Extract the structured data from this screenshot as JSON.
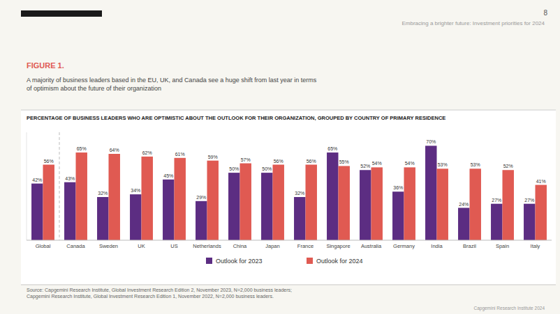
{
  "chart_data": {
    "type": "bar",
    "title": "PERCENTAGE OF BUSINESS LEADERS WHO ARE OPTIMISTIC ABOUT THE OUTLOOK FOR THEIR ORGANIZATION, GROUPED BY COUNTRY OF PRIMARY RESIDENCE",
    "categories": [
      "Global",
      "Canada",
      "Sweden",
      "UK",
      "US",
      "Netherlands",
      "China",
      "Japan",
      "France",
      "Singapore",
      "Australia",
      "Germany",
      "India",
      "Brazil",
      "Spain",
      "Italy"
    ],
    "series": [
      {
        "name": "Outlook for 2023",
        "color": "#5c2d82",
        "values": [
          42,
          43,
          32,
          34,
          45,
          29,
          50,
          50,
          32,
          65,
          52,
          36,
          70,
          24,
          27,
          27
        ],
        "value_labels": [
          "42%",
          "43%",
          "32%",
          "34%",
          "45%",
          "29%",
          "50%",
          "50%",
          "32%",
          "65%",
          "52%",
          "36%",
          "70%",
          "24%",
          "27%",
          "27%"
        ]
      },
      {
        "name": "Outlook for 2024",
        "color": "#e05a52",
        "values": [
          56,
          65,
          64,
          62,
          61,
          59,
          57,
          56,
          56,
          55,
          54,
          54,
          53,
          53,
          52,
          41
        ],
        "value_labels": [
          "56%",
          "65%",
          "64%",
          "62%",
          "61%",
          "59%",
          "57%",
          "56%",
          "56%",
          "55%",
          "54%",
          "54%",
          "53%",
          "53%",
          "52%",
          "41%"
        ]
      }
    ],
    "ylim": [
      0,
      80
    ],
    "grid": false,
    "legend": "bottom",
    "data_labels": true,
    "tick_labels": "x"
  },
  "page_number": "8",
  "header_right": "Embracing a brighter future: Investment priorities for 2024",
  "figure_label": "FIGURE 1.",
  "figure_subtitle": "A majority of business leaders based in the EU, UK, and Canada see a huge shift from last year in terms\nof optimism about the future of their organization",
  "source_text": "Source: Capgemini Research Institute, Global Investment Research Edition 2, November 2023, N=2,000 business leaders;\nCapgemini Research Institute, Global Investment Research Edition 1, November 2022, N=2,000 business leaders.",
  "footer_text": "Capgemini Research Institute 2024"
}
